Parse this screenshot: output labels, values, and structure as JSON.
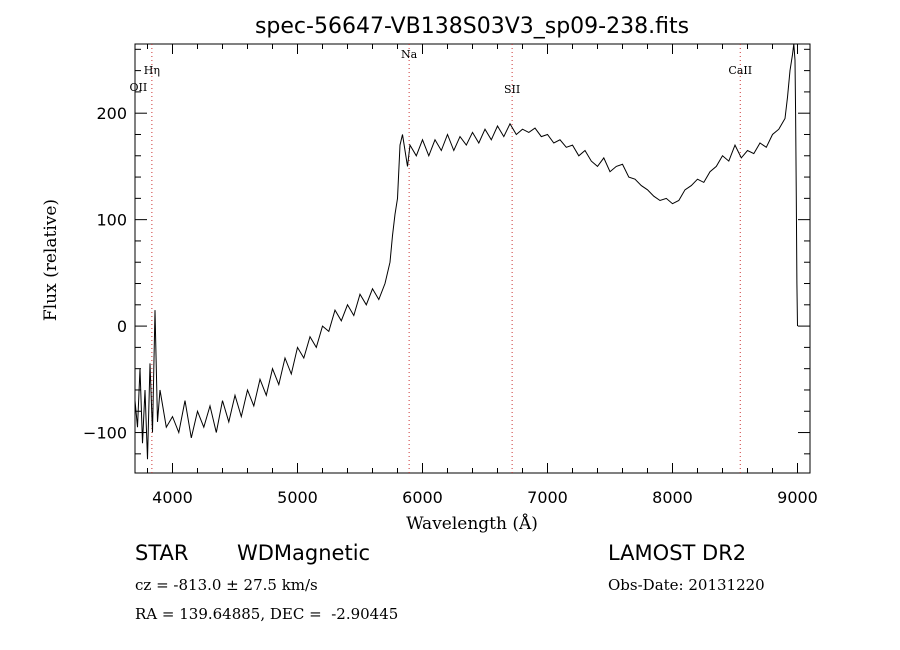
{
  "chart_data": {
    "type": "line",
    "title": "spec-56647-VB138S03V3_sp09-238.fits",
    "xlabel": "Wavelength (Å)",
    "ylabel": "Flux (relative)",
    "xlim": [
      3700,
      9100
    ],
    "ylim": [
      -138,
      265
    ],
    "x_ticks": [
      4000,
      5000,
      6000,
      7000,
      8000,
      9000
    ],
    "y_ticks": [
      -100,
      0,
      100,
      200
    ],
    "grid": false,
    "line_color": "#000000",
    "line_markers": [
      {
        "label": "Hη",
        "x": 3835
      },
      {
        "label": "OII",
        "x": 3727
      },
      {
        "label": "Na",
        "x": 5893
      },
      {
        "label": "SII",
        "x": 6717
      },
      {
        "label": "CaII",
        "x": 8542
      }
    ],
    "marker_color": "#cc3333",
    "series": [
      {
        "x": [
          3700,
          3720,
          3740,
          3760,
          3780,
          3800,
          3820,
          3840,
          3860,
          3880,
          3900,
          3950,
          4000,
          4050,
          4100,
          4150,
          4200,
          4250,
          4300,
          4350,
          4400,
          4450,
          4500,
          4550,
          4600,
          4650,
          4700,
          4750,
          4800,
          4850,
          4900,
          4950,
          5000,
          5050,
          5100,
          5150,
          5200,
          5250,
          5300,
          5350,
          5400,
          5450,
          5500,
          5550,
          5600,
          5650,
          5700,
          5740,
          5760,
          5780,
          5800,
          5820,
          5840,
          5860,
          5880,
          5900,
          5950,
          6000,
          6050,
          6100,
          6150,
          6200,
          6250,
          6300,
          6350,
          6400,
          6450,
          6500,
          6550,
          6600,
          6650,
          6700,
          6750,
          6800,
          6850,
          6900,
          6950,
          7000,
          7050,
          7100,
          7150,
          7200,
          7250,
          7300,
          7350,
          7400,
          7450,
          7500,
          7550,
          7600,
          7650,
          7700,
          7750,
          7800,
          7850,
          7900,
          7950,
          8000,
          8050,
          8100,
          8150,
          8200,
          8250,
          8300,
          8350,
          8400,
          8450,
          8500,
          8550,
          8600,
          8650,
          8700,
          8750,
          8800,
          8850,
          8900,
          8920,
          8940,
          8960,
          8970,
          8980,
          8985,
          8990,
          8995,
          9000
        ],
        "y": [
          -70,
          -95,
          -40,
          -110,
          -60,
          -125,
          -35,
          -100,
          15,
          -90,
          -60,
          -95,
          -85,
          -100,
          -70,
          -105,
          -80,
          -95,
          -75,
          -100,
          -70,
          -90,
          -65,
          -85,
          -60,
          -75,
          -50,
          -65,
          -40,
          -55,
          -30,
          -45,
          -20,
          -30,
          -10,
          -20,
          0,
          -5,
          15,
          5,
          20,
          10,
          30,
          20,
          35,
          25,
          40,
          60,
          85,
          105,
          120,
          170,
          180,
          165,
          150,
          170,
          160,
          175,
          160,
          175,
          165,
          180,
          165,
          178,
          170,
          182,
          172,
          185,
          175,
          188,
          178,
          190,
          180,
          185,
          182,
          186,
          178,
          180,
          172,
          175,
          168,
          170,
          160,
          165,
          155,
          150,
          158,
          145,
          150,
          152,
          140,
          138,
          132,
          128,
          122,
          118,
          120,
          115,
          118,
          128,
          132,
          138,
          135,
          145,
          150,
          160,
          155,
          170,
          158,
          165,
          162,
          172,
          168,
          180,
          185,
          195,
          215,
          240,
          255,
          265,
          250,
          200,
          120,
          40,
          0
        ]
      }
    ]
  },
  "info": {
    "object_class": "STAR",
    "subclass": "WDMagnetic",
    "survey": "LAMOST DR2",
    "redshift": "cz = -813.0 ± 27.5 km/s",
    "obs_date": "Obs-Date: 20131220",
    "coords": "RA = 139.64885, DEC =  -2.90445"
  }
}
